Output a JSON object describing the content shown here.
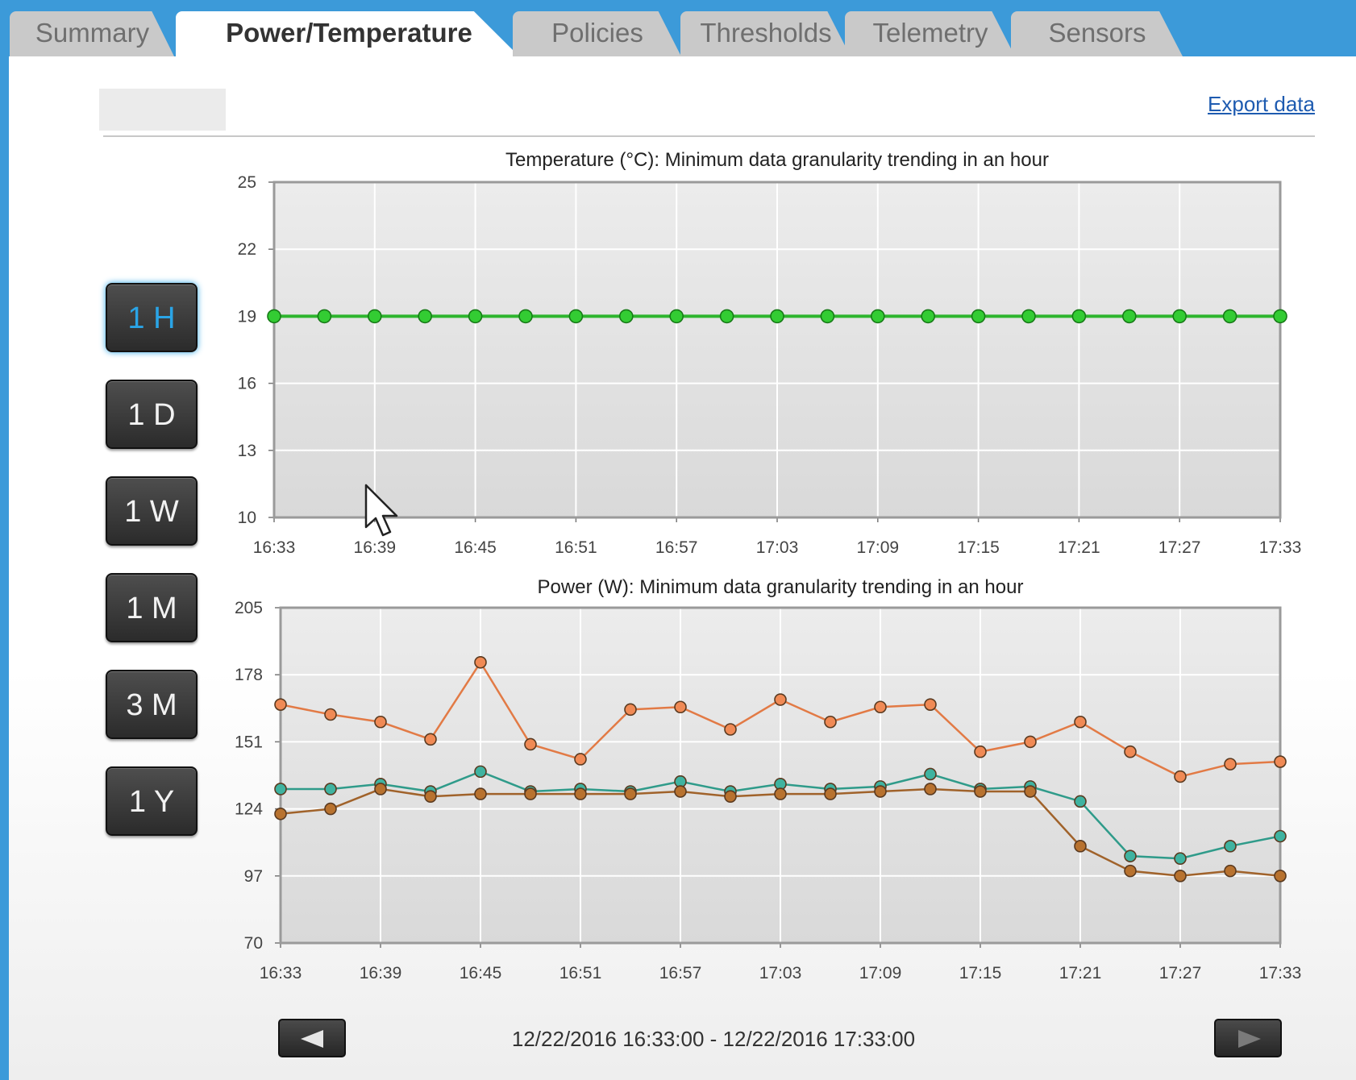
{
  "tabs": [
    {
      "label": "Summary",
      "active": false
    },
    {
      "label": "Power/Temperature",
      "active": true
    },
    {
      "label": "Policies",
      "active": false
    },
    {
      "label": "Thresholds",
      "active": false
    },
    {
      "label": "Telemetry",
      "active": false
    },
    {
      "label": "Sensors",
      "active": false
    }
  ],
  "toolbar": {
    "export_label": "Export data"
  },
  "range_buttons": [
    {
      "label": "1 H",
      "active": true
    },
    {
      "label": "1 D",
      "active": false
    },
    {
      "label": "1 W",
      "active": false
    },
    {
      "label": "1 M",
      "active": false
    },
    {
      "label": "3 M",
      "active": false
    },
    {
      "label": "1 Y",
      "active": false
    }
  ],
  "time_range": {
    "label": "12/22/2016 16:33:00 - 12/22/2016 17:33:00"
  },
  "colors": {
    "temperature": "#2db52d",
    "power_orange": "#e27a45",
    "power_teal": "#2f9b8a",
    "power_brown": "#a0622a"
  },
  "chart_data": [
    {
      "type": "line",
      "title": "Temperature (°C): Minimum data granularity trending in an hour",
      "x_ticks": [
        "16:33",
        "16:39",
        "16:45",
        "16:51",
        "16:57",
        "17:03",
        "17:09",
        "17:15",
        "17:21",
        "17:27",
        "17:33"
      ],
      "y_ticks": [
        10,
        13,
        16,
        19,
        22,
        25
      ],
      "ylim": [
        10,
        25
      ],
      "grid": true,
      "x": [
        "16:33",
        "16:36",
        "16:39",
        "16:42",
        "16:45",
        "16:48",
        "16:51",
        "16:54",
        "16:57",
        "17:00",
        "17:03",
        "17:06",
        "17:09",
        "17:12",
        "17:15",
        "17:18",
        "17:21",
        "17:24",
        "17:27",
        "17:30",
        "17:33"
      ],
      "series": [
        {
          "values": [
            19,
            19,
            19,
            19,
            19,
            19,
            19,
            19,
            19,
            19,
            19,
            19,
            19,
            19,
            19,
            19,
            19,
            19,
            19,
            19,
            19
          ]
        }
      ]
    },
    {
      "type": "line",
      "title": "Power (W): Minimum data granularity trending in an hour",
      "x_ticks": [
        "16:33",
        "16:39",
        "16:45",
        "16:51",
        "16:57",
        "17:03",
        "17:09",
        "17:15",
        "17:21",
        "17:27",
        "17:33"
      ],
      "y_ticks": [
        70,
        97,
        124,
        151,
        178,
        205
      ],
      "ylim": [
        70,
        205
      ],
      "grid": true,
      "x": [
        "16:33",
        "16:36",
        "16:39",
        "16:42",
        "16:45",
        "16:48",
        "16:51",
        "16:54",
        "16:57",
        "17:00",
        "17:03",
        "17:06",
        "17:09",
        "17:12",
        "17:15",
        "17:18",
        "17:21",
        "17:24",
        "17:27",
        "17:30",
        "17:33"
      ],
      "series": [
        {
          "values": [
            166,
            162,
            159,
            152,
            183,
            150,
            144,
            164,
            165,
            156,
            168,
            159,
            165,
            166,
            147,
            151,
            159,
            147,
            137,
            142,
            143
          ]
        },
        {
          "values": [
            132,
            132,
            134,
            131,
            139,
            131,
            132,
            131,
            135,
            131,
            134,
            132,
            133,
            138,
            132,
            133,
            127,
            105,
            104,
            109,
            113
          ]
        },
        {
          "values": [
            122,
            124,
            132,
            129,
            130,
            130,
            130,
            130,
            131,
            129,
            130,
            130,
            131,
            132,
            131,
            131,
            109,
            99,
            97,
            99,
            97
          ]
        }
      ]
    }
  ]
}
